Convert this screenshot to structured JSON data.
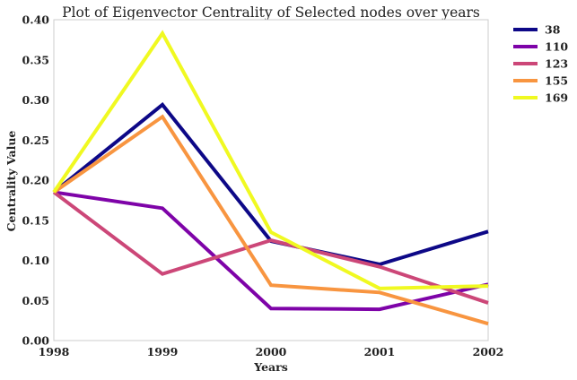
{
  "chart_data": {
    "type": "line",
    "title": "Plot of Eigenvector Centrality of Selected nodes over years",
    "xlabel": "Years",
    "ylabel": "Centrality Value",
    "x": [
      1998,
      1999,
      2000,
      2001,
      2002
    ],
    "x_tick_labels": [
      "1998",
      "1999",
      "2000",
      "2001",
      "2002"
    ],
    "xlim": [
      1998,
      2002
    ],
    "ylim": [
      0.0,
      0.4
    ],
    "y_ticks": [
      0.0,
      0.05,
      0.1,
      0.15,
      0.2,
      0.25,
      0.3,
      0.35,
      0.4
    ],
    "y_tick_labels": [
      "0.00",
      "0.05",
      "0.10",
      "0.15",
      "0.20",
      "0.25",
      "0.30",
      "0.35",
      "0.40"
    ],
    "grid": false,
    "legend_position": "outside-top-right",
    "series": [
      {
        "name": "38",
        "color": "#0d0887",
        "values": [
          0.185,
          0.294,
          0.124,
          0.095,
          0.136
        ]
      },
      {
        "name": "110",
        "color": "#7e03a8",
        "values": [
          0.185,
          0.165,
          0.04,
          0.039,
          0.07
        ]
      },
      {
        "name": "123",
        "color": "#cc4778",
        "values": [
          0.185,
          0.083,
          0.125,
          0.092,
          0.047
        ]
      },
      {
        "name": "155",
        "color": "#f89540",
        "values": [
          0.185,
          0.279,
          0.069,
          0.06,
          0.021
        ]
      },
      {
        "name": "169",
        "color": "#f0f921",
        "values": [
          0.185,
          0.383,
          0.135,
          0.065,
          0.068
        ]
      }
    ]
  }
}
